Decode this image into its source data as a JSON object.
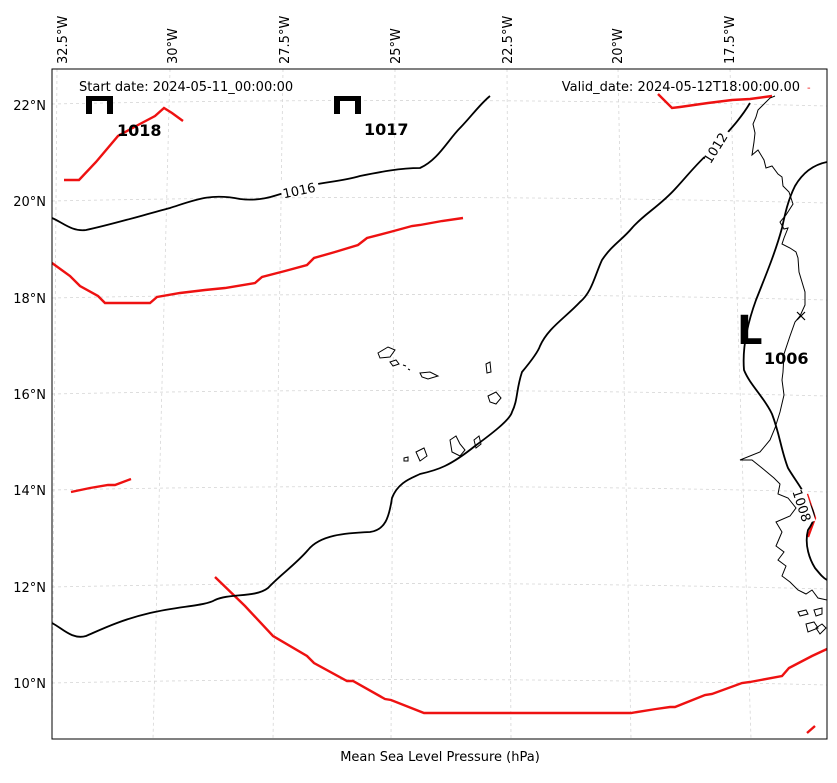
{
  "map": {
    "start_date": "Start date: 2024-05-11_00:00:00",
    "valid_date": "Valid_date: 2024-05-12T18:00:00.00",
    "caption": "Mean Sea Level Pressure (hPa)",
    "longitude_labels": [
      "32.5°W",
      "30°W",
      "27.5°W",
      "25°W",
      "22.5°W",
      "20°W",
      "17.5°W"
    ],
    "latitude_labels": [
      "22°N",
      "20°N",
      "18°N",
      "16°N",
      "14°N",
      "12°N",
      "10°N"
    ],
    "isobar_labels": {
      "label_1016": "1016",
      "label_1012": "1012",
      "label_1008": "1008"
    },
    "pressure_centers": {
      "high_1_value": "1018",
      "high_2_value": "1017",
      "low_letter": "L",
      "low_value": "1006"
    },
    "colors": {
      "isobar": "#000000",
      "front": "#ee1111",
      "grid": "#d6d6d6"
    }
  }
}
